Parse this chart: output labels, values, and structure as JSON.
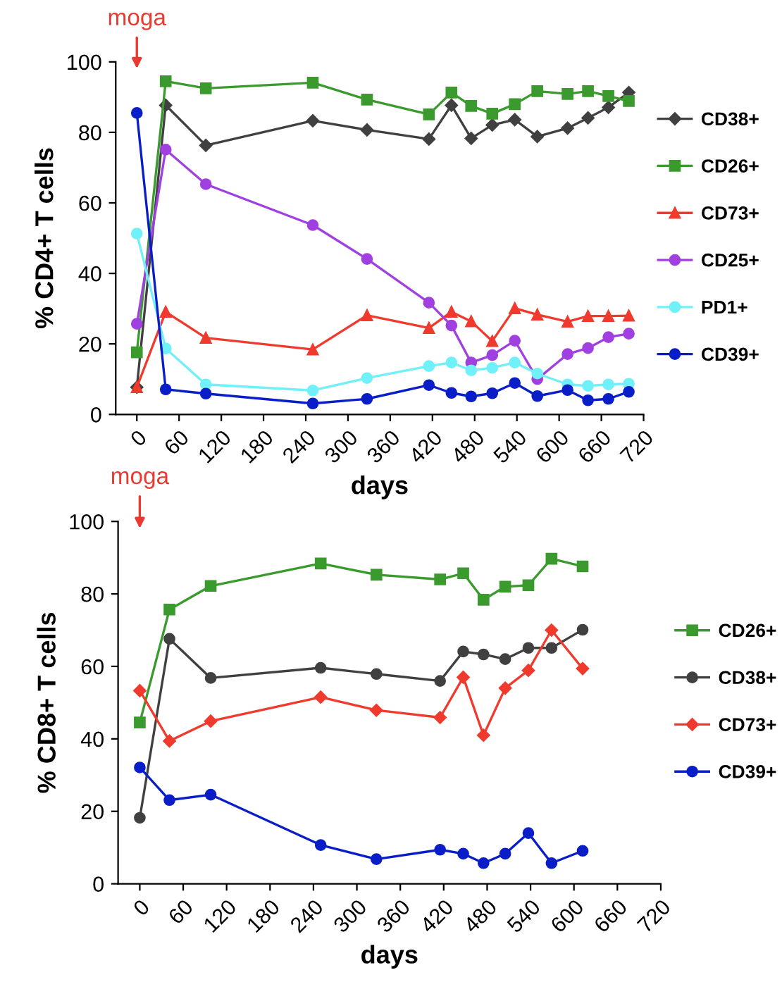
{
  "chart_data": [
    {
      "type": "line",
      "ylabel": "% CD4+ T cells",
      "xlabel": "days",
      "x": [
        0,
        41,
        98,
        250,
        327,
        415,
        447,
        475,
        505,
        537,
        569,
        612,
        641,
        670,
        699
      ],
      "xlim": [
        -30,
        720
      ],
      "xticks": [
        0,
        60,
        120,
        180,
        240,
        300,
        360,
        420,
        480,
        540,
        600,
        660,
        720
      ],
      "ylim": [
        0,
        100
      ],
      "yticks": [
        0,
        20,
        40,
        60,
        80,
        100
      ],
      "grid": false,
      "legend": "right",
      "annotations": [
        "moga"
      ],
      "series": [
        {
          "name": "CD38+",
          "color": "#404040",
          "marker": "diamond",
          "values": [
            7.7,
            87.7,
            76.3,
            83.3,
            80.7,
            78.1,
            87.7,
            78.3,
            82.1,
            83.6,
            78.8,
            81.2,
            84.1,
            87.1,
            91.3
          ]
        },
        {
          "name": "CD26+",
          "color": "#3a9a2e",
          "marker": "square",
          "values": [
            17.6,
            94.5,
            92.5,
            94.1,
            89.3,
            85.1,
            91.3,
            87.5,
            85.3,
            88.0,
            91.7,
            90.9,
            91.7,
            90.3,
            88.9
          ]
        },
        {
          "name": "CD73+",
          "color": "#f03a2e",
          "marker": "triangle",
          "values": [
            7.7,
            29.1,
            21.7,
            18.4,
            28.1,
            24.5,
            29.1,
            26.4,
            20.8,
            30.1,
            28.3,
            26.3,
            27.9,
            27.9,
            28.0
          ]
        },
        {
          "name": "CD25+",
          "color": "#a040e0",
          "marker": "circle",
          "values": [
            25.7,
            75.1,
            65.3,
            53.7,
            44.1,
            31.7,
            25.2,
            14.7,
            16.8,
            20.9,
            10.0,
            17.1,
            18.8,
            21.9,
            22.9
          ]
        },
        {
          "name": "PD1+",
          "color": "#70f0f8",
          "marker": "circle",
          "values": [
            51.3,
            18.7,
            8.5,
            6.8,
            10.3,
            13.7,
            14.7,
            12.5,
            13.2,
            14.7,
            11.6,
            8.5,
            8.1,
            8.5,
            8.7
          ]
        },
        {
          "name": "CD39+",
          "color": "#0a1ec8",
          "marker": "circle",
          "values": [
            85.5,
            7.1,
            5.9,
            3.1,
            4.4,
            8.3,
            6.1,
            5.1,
            6.0,
            8.9,
            5.2,
            6.9,
            4.0,
            4.4,
            6.4
          ]
        }
      ]
    },
    {
      "type": "line",
      "ylabel": "% CD8+ T cells",
      "xlabel": "days",
      "x": [
        0,
        41,
        98,
        250,
        327,
        415,
        447,
        475,
        505,
        537,
        569,
        612
      ],
      "xlim": [
        -30,
        720
      ],
      "xticks": [
        0,
        60,
        120,
        180,
        240,
        300,
        360,
        420,
        480,
        540,
        600,
        660,
        720
      ],
      "ylim": [
        0,
        100
      ],
      "yticks": [
        0,
        20,
        40,
        60,
        80,
        100
      ],
      "grid": false,
      "legend": "right",
      "annotations": [
        "moga"
      ],
      "series": [
        {
          "name": "CD26+",
          "color": "#3a9a2e",
          "marker": "square",
          "values": [
            44.5,
            75.7,
            82.2,
            88.4,
            85.3,
            84.0,
            85.7,
            78.4,
            82.0,
            82.4,
            89.7,
            87.6
          ]
        },
        {
          "name": "CD38+",
          "color": "#404040",
          "marker": "circle",
          "values": [
            18.2,
            67.6,
            56.8,
            59.6,
            57.9,
            56.0,
            64.1,
            63.3,
            62.0,
            65.1,
            65.1,
            70.1
          ]
        },
        {
          "name": "CD73+",
          "color": "#f03a2e",
          "marker": "diamond",
          "values": [
            53.3,
            39.4,
            44.9,
            51.5,
            47.9,
            45.9,
            57.0,
            41.0,
            54.0,
            58.9,
            70.0,
            59.4
          ]
        },
        {
          "name": "CD39+",
          "color": "#0a1ec8",
          "marker": "circle",
          "values": [
            32.1,
            23.1,
            24.6,
            10.7,
            6.8,
            9.4,
            8.3,
            5.7,
            8.3,
            14.0,
            5.7,
            9.1
          ]
        }
      ]
    }
  ]
}
